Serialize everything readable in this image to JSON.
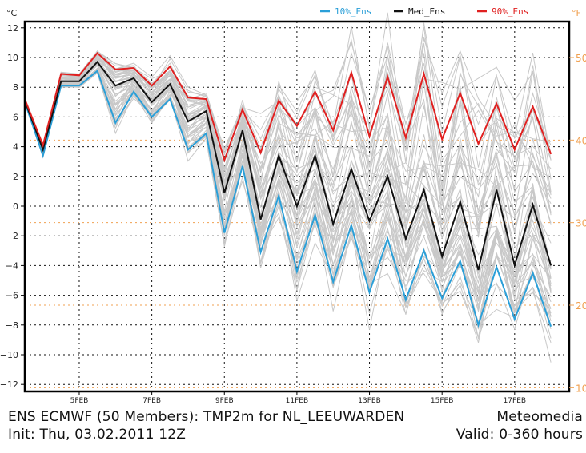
{
  "chart_data": {
    "type": "line",
    "title": "ENS ECMWF (50 Members): TMP2m for NL_LEEUWARDEN",
    "source": "Meteomedia",
    "init": "Init: Thu, 03.02.2011 12Z",
    "valid": "Valid: 0-360 hours",
    "ylabel_left": "°C",
    "ylabel_right": "°F",
    "ylim": [
      -13.5,
      13
    ],
    "yticks_left": [
      12,
      10,
      8,
      6,
      4,
      2,
      0,
      -2,
      -4,
      -6,
      -8,
      -10,
      -12
    ],
    "yticks_right": [
      50,
      40,
      30,
      20,
      10
    ],
    "x_step_hours": 12,
    "x_start_label": "03FEB 12Z",
    "xtick_labels": [
      "5FEB",
      "7FEB",
      "9FEB",
      "11FEB",
      "13FEB",
      "15FEB",
      "17FEB"
    ],
    "xtick_steps": [
      3,
      7,
      11,
      15,
      19,
      23,
      27
    ],
    "x_steps_total": 30.5,
    "grid": true,
    "legend_position": "top-right",
    "members_count": 50,
    "series": [
      {
        "name": "10%_Ens",
        "color": "#2a9fd8",
        "values": [
          7.0,
          3.4,
          8.1,
          8.1,
          9.1,
          5.6,
          7.7,
          6.0,
          7.2,
          3.8,
          4.9,
          -1.8,
          2.7,
          -3.1,
          0.7,
          -4.4,
          -0.6,
          -5.1,
          -1.3,
          -5.8,
          -2.2,
          -6.3,
          -3.0,
          -6.2,
          -3.7,
          -8.0,
          -4.1,
          -7.6,
          -4.5,
          -8.1
        ]
      },
      {
        "name": "Med_Ens",
        "color": "#111111",
        "values": [
          7.1,
          3.8,
          8.4,
          8.4,
          9.7,
          8.1,
          8.6,
          7.0,
          8.2,
          5.7,
          6.4,
          0.9,
          5.1,
          -0.9,
          3.4,
          0.0,
          3.4,
          -1.2,
          2.5,
          -1.0,
          2.0,
          -2.2,
          1.1,
          -3.4,
          0.3,
          -4.3,
          1.1,
          -4.0,
          0.1,
          -4.0
        ]
      },
      {
        "name": "90%_Ens",
        "color": "#e02020",
        "values": [
          7.2,
          4.1,
          8.9,
          8.8,
          10.3,
          9.2,
          9.3,
          8.1,
          9.4,
          7.3,
          7.2,
          3.1,
          6.5,
          3.6,
          7.1,
          5.4,
          7.7,
          5.1,
          9.0,
          4.7,
          8.7,
          4.6,
          8.9,
          4.5,
          7.6,
          4.2,
          6.9,
          3.8,
          6.7,
          3.5
        ]
      }
    ],
    "colors": {
      "grid": "#111111",
      "fahrenheit": "#f0a050",
      "members": "#c8c8c8"
    }
  }
}
